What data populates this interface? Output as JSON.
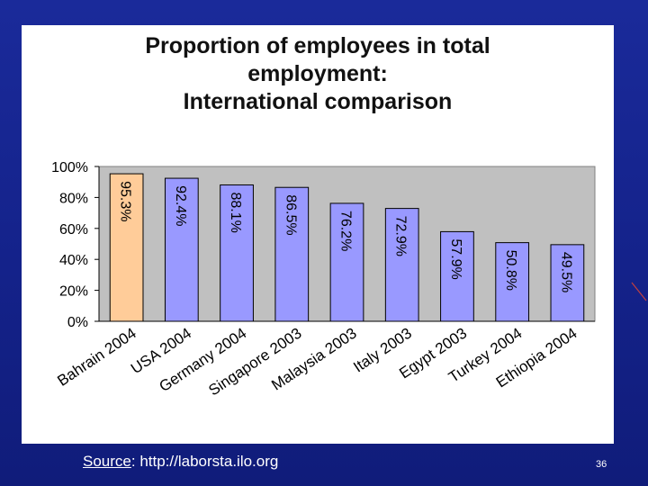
{
  "slide": {
    "source_label": "Source",
    "source_rest": ": http://laborsta.ilo.org",
    "slide_number": "36"
  },
  "colors": {
    "highlight_bar": "#ffcc99",
    "bar": "#9999ff",
    "plot_bg": "#c0c0c0",
    "background": "#14228a"
  },
  "chart_data": {
    "type": "bar",
    "title_lines": [
      "Proportion of employees in total",
      "employment:",
      "International comparison"
    ],
    "categories": [
      "Bahrain 2004",
      "USA 2004",
      "Germany 2004",
      "Singapore 2003",
      "Malaysia 2003",
      "Italy 2003",
      "Egypt 2003",
      "Turkey 2004",
      "Ethiopia 2004"
    ],
    "values": [
      95.3,
      92.4,
      88.1,
      86.5,
      76.2,
      72.9,
      57.9,
      50.8,
      49.5
    ],
    "data_labels": [
      "95.3%",
      "92.4%",
      "88.1%",
      "86.5%",
      "76.2%",
      "72.9%",
      "57.9%",
      "50.8%",
      "49.5%"
    ],
    "highlight_index": 0,
    "yticks": [
      "0%",
      "20%",
      "40%",
      "60%",
      "80%",
      "100%"
    ],
    "ylim": [
      0,
      100
    ],
    "grid": false,
    "xlabel": "",
    "ylabel": ""
  }
}
